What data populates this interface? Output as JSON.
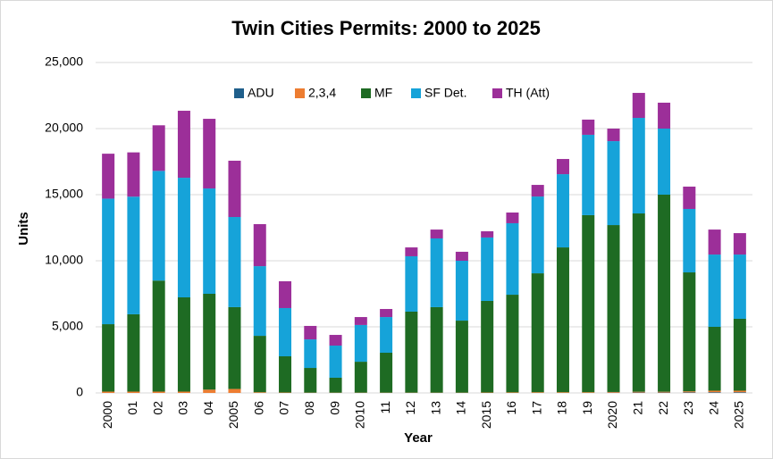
{
  "chart_data": {
    "type": "stacked_bar",
    "title": "Twin Cities Permits: 2000 to 2025",
    "x_label": "Year",
    "y_label": "Units",
    "categories": [
      "2000",
      "01",
      "02",
      "03",
      "04",
      "2005",
      "06",
      "07",
      "08",
      "09",
      "2010",
      "11",
      "12",
      "13",
      "14",
      "2015",
      "16",
      "17",
      "18",
      "19",
      "2020",
      "21",
      "22",
      "23",
      "24",
      "2025"
    ],
    "series": [
      {
        "name": "ADU",
        "color": "#1f5f8b",
        "values": [
          0,
          0,
          0,
          0,
          0,
          0,
          0,
          0,
          0,
          0,
          0,
          0,
          0,
          0,
          0,
          0,
          0,
          0,
          0,
          0,
          20,
          30,
          30,
          40,
          50,
          50
        ]
      },
      {
        "name": "2,3,4",
        "color": "#ed7d31",
        "values": [
          100,
          100,
          100,
          100,
          250,
          300,
          50,
          30,
          20,
          20,
          20,
          20,
          20,
          20,
          20,
          30,
          40,
          50,
          50,
          50,
          50,
          60,
          60,
          80,
          120,
          120
        ]
      },
      {
        "name": "MF",
        "color": "#1e6b23",
        "values": [
          5100,
          5850,
          8400,
          7130,
          7250,
          6190,
          4270,
          2740,
          1870,
          1130,
          2340,
          3020,
          6130,
          6470,
          5450,
          6930,
          7390,
          9000,
          10960,
          13400,
          12630,
          13490,
          14910,
          9000,
          4830,
          5440
        ]
      },
      {
        "name": "SF Det.",
        "color": "#16a3d9",
        "values": [
          9500,
          8900,
          8300,
          9050,
          7970,
          6820,
          5270,
          3650,
          2160,
          2430,
          2780,
          2700,
          4190,
          5200,
          4530,
          4800,
          5410,
          5810,
          5540,
          6080,
          6350,
          7230,
          5000,
          4800,
          5470,
          4860
        ]
      },
      {
        "name": "TH (Att)",
        "color": "#9c2f99",
        "values": [
          3400,
          3350,
          3450,
          5070,
          5270,
          4260,
          3180,
          2030,
          1020,
          810,
          600,
          610,
          670,
          670,
          680,
          470,
          810,
          880,
          1150,
          1150,
          950,
          1890,
          1960,
          1690,
          1890,
          1620
        ]
      }
    ],
    "ylim": [
      0,
      25000
    ],
    "yticks": [
      0,
      {
        "value": 5000,
        "label": "5,000"
      },
      {
        "value": 10000,
        "label": "10,000"
      },
      {
        "value": 15000,
        "label": "15,000"
      },
      {
        "value": 20000,
        "label": "20,000"
      },
      {
        "value": 25000,
        "label": "25,000"
      }
    ],
    "grid": true,
    "legend": "top"
  }
}
